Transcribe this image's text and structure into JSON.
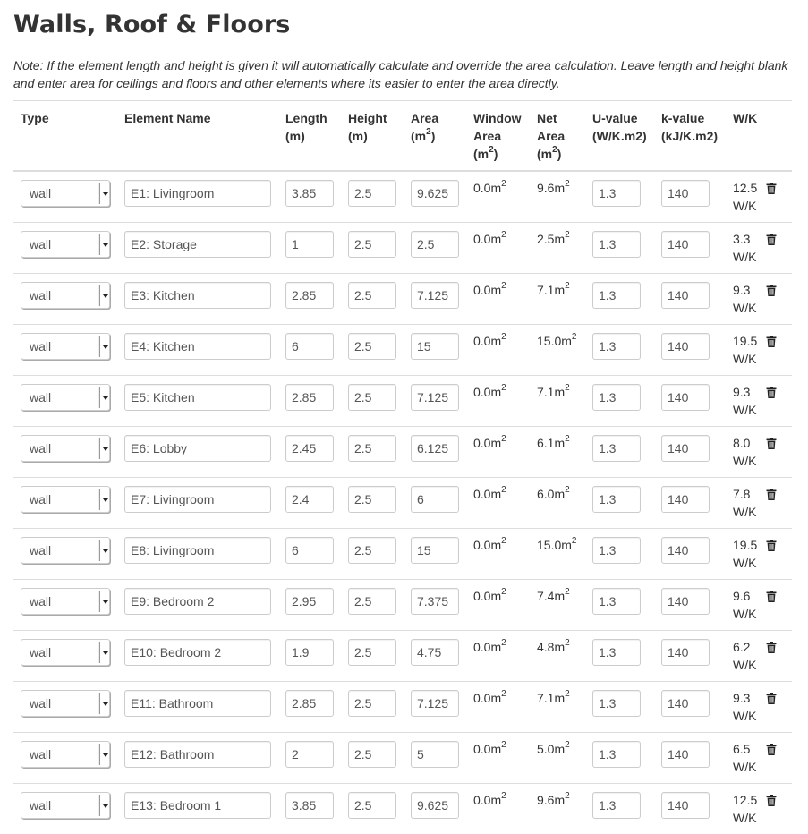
{
  "title": "Walls, Roof & Floors",
  "note": "Note: If the element length and height is given it will automatically calculate and override the area calculation. Leave length and height blank and enter area for ceilings and floors and other elements where its easier to enter the area directly.",
  "columns": {
    "type": "Type",
    "name": "Element Name",
    "length": "Length",
    "length_unit": "(m)",
    "height": "Height",
    "height_unit": "(m)",
    "area": "Area",
    "area_unit": "(m",
    "area_unit_sup": "2",
    "area_unit_end": ")",
    "window": "Window",
    "window2": "Area",
    "window_unit": "(m",
    "window_unit_sup": "2",
    "window_unit_end": ")",
    "net": "Net",
    "net2": "Area",
    "net_unit": "(m",
    "net_unit_sup": "2",
    "net_unit_end": ")",
    "u": "U-value",
    "u_unit": "(W/K.m2)",
    "k": "k-value",
    "k_unit": "(kJ/K.m2)",
    "wk": "W/K"
  },
  "units": {
    "m2": "m",
    "sup": "2",
    "wk": "W/K"
  },
  "rows": [
    {
      "type": "wall",
      "name": "E1: Livingroom",
      "length": "3.85",
      "height": "2.5",
      "area": "9.625",
      "window": "0.0",
      "net": "9.6",
      "u": "1.3",
      "k": "140",
      "wk": "12.5"
    },
    {
      "type": "wall",
      "name": "E2: Storage",
      "length": "1",
      "height": "2.5",
      "area": "2.5",
      "window": "0.0",
      "net": "2.5",
      "u": "1.3",
      "k": "140",
      "wk": "3.3"
    },
    {
      "type": "wall",
      "name": "E3: Kitchen",
      "length": "2.85",
      "height": "2.5",
      "area": "7.125",
      "window": "0.0",
      "net": "7.1",
      "u": "1.3",
      "k": "140",
      "wk": "9.3"
    },
    {
      "type": "wall",
      "name": "E4: Kitchen",
      "length": "6",
      "height": "2.5",
      "area": "15",
      "window": "0.0",
      "net": "15.0",
      "u": "1.3",
      "k": "140",
      "wk": "19.5"
    },
    {
      "type": "wall",
      "name": "E5: Kitchen",
      "length": "2.85",
      "height": "2.5",
      "area": "7.125",
      "window": "0.0",
      "net": "7.1",
      "u": "1.3",
      "k": "140",
      "wk": "9.3"
    },
    {
      "type": "wall",
      "name": "E6: Lobby",
      "length": "2.45",
      "height": "2.5",
      "area": "6.125",
      "window": "0.0",
      "net": "6.1",
      "u": "1.3",
      "k": "140",
      "wk": "8.0"
    },
    {
      "type": "wall",
      "name": "E7: Livingroom",
      "length": "2.4",
      "height": "2.5",
      "area": "6",
      "window": "0.0",
      "net": "6.0",
      "u": "1.3",
      "k": "140",
      "wk": "7.8"
    },
    {
      "type": "wall",
      "name": "E8: Livingroom",
      "length": "6",
      "height": "2.5",
      "area": "15",
      "window": "0.0",
      "net": "15.0",
      "u": "1.3",
      "k": "140",
      "wk": "19.5"
    },
    {
      "type": "wall",
      "name": "E9: Bedroom 2",
      "length": "2.95",
      "height": "2.5",
      "area": "7.375",
      "window": "0.0",
      "net": "7.4",
      "u": "1.3",
      "k": "140",
      "wk": "9.6"
    },
    {
      "type": "wall",
      "name": "E10: Bedroom 2",
      "length": "1.9",
      "height": "2.5",
      "area": "4.75",
      "window": "0.0",
      "net": "4.8",
      "u": "1.3",
      "k": "140",
      "wk": "6.2"
    },
    {
      "type": "wall",
      "name": "E11: Bathroom",
      "length": "2.85",
      "height": "2.5",
      "area": "7.125",
      "window": "0.0",
      "net": "7.1",
      "u": "1.3",
      "k": "140",
      "wk": "9.3"
    },
    {
      "type": "wall",
      "name": "E12: Bathroom",
      "length": "2",
      "height": "2.5",
      "area": "5",
      "window": "0.0",
      "net": "5.0",
      "u": "1.3",
      "k": "140",
      "wk": "6.5"
    },
    {
      "type": "wall",
      "name": "E13: Bedroom 1",
      "length": "3.85",
      "height": "2.5",
      "area": "9.625",
      "window": "0.0",
      "net": "9.6",
      "u": "1.3",
      "k": "140",
      "wk": "12.5"
    }
  ],
  "icons": {
    "delete": "trash-icon",
    "dropdown": "caret-down-icon"
  }
}
